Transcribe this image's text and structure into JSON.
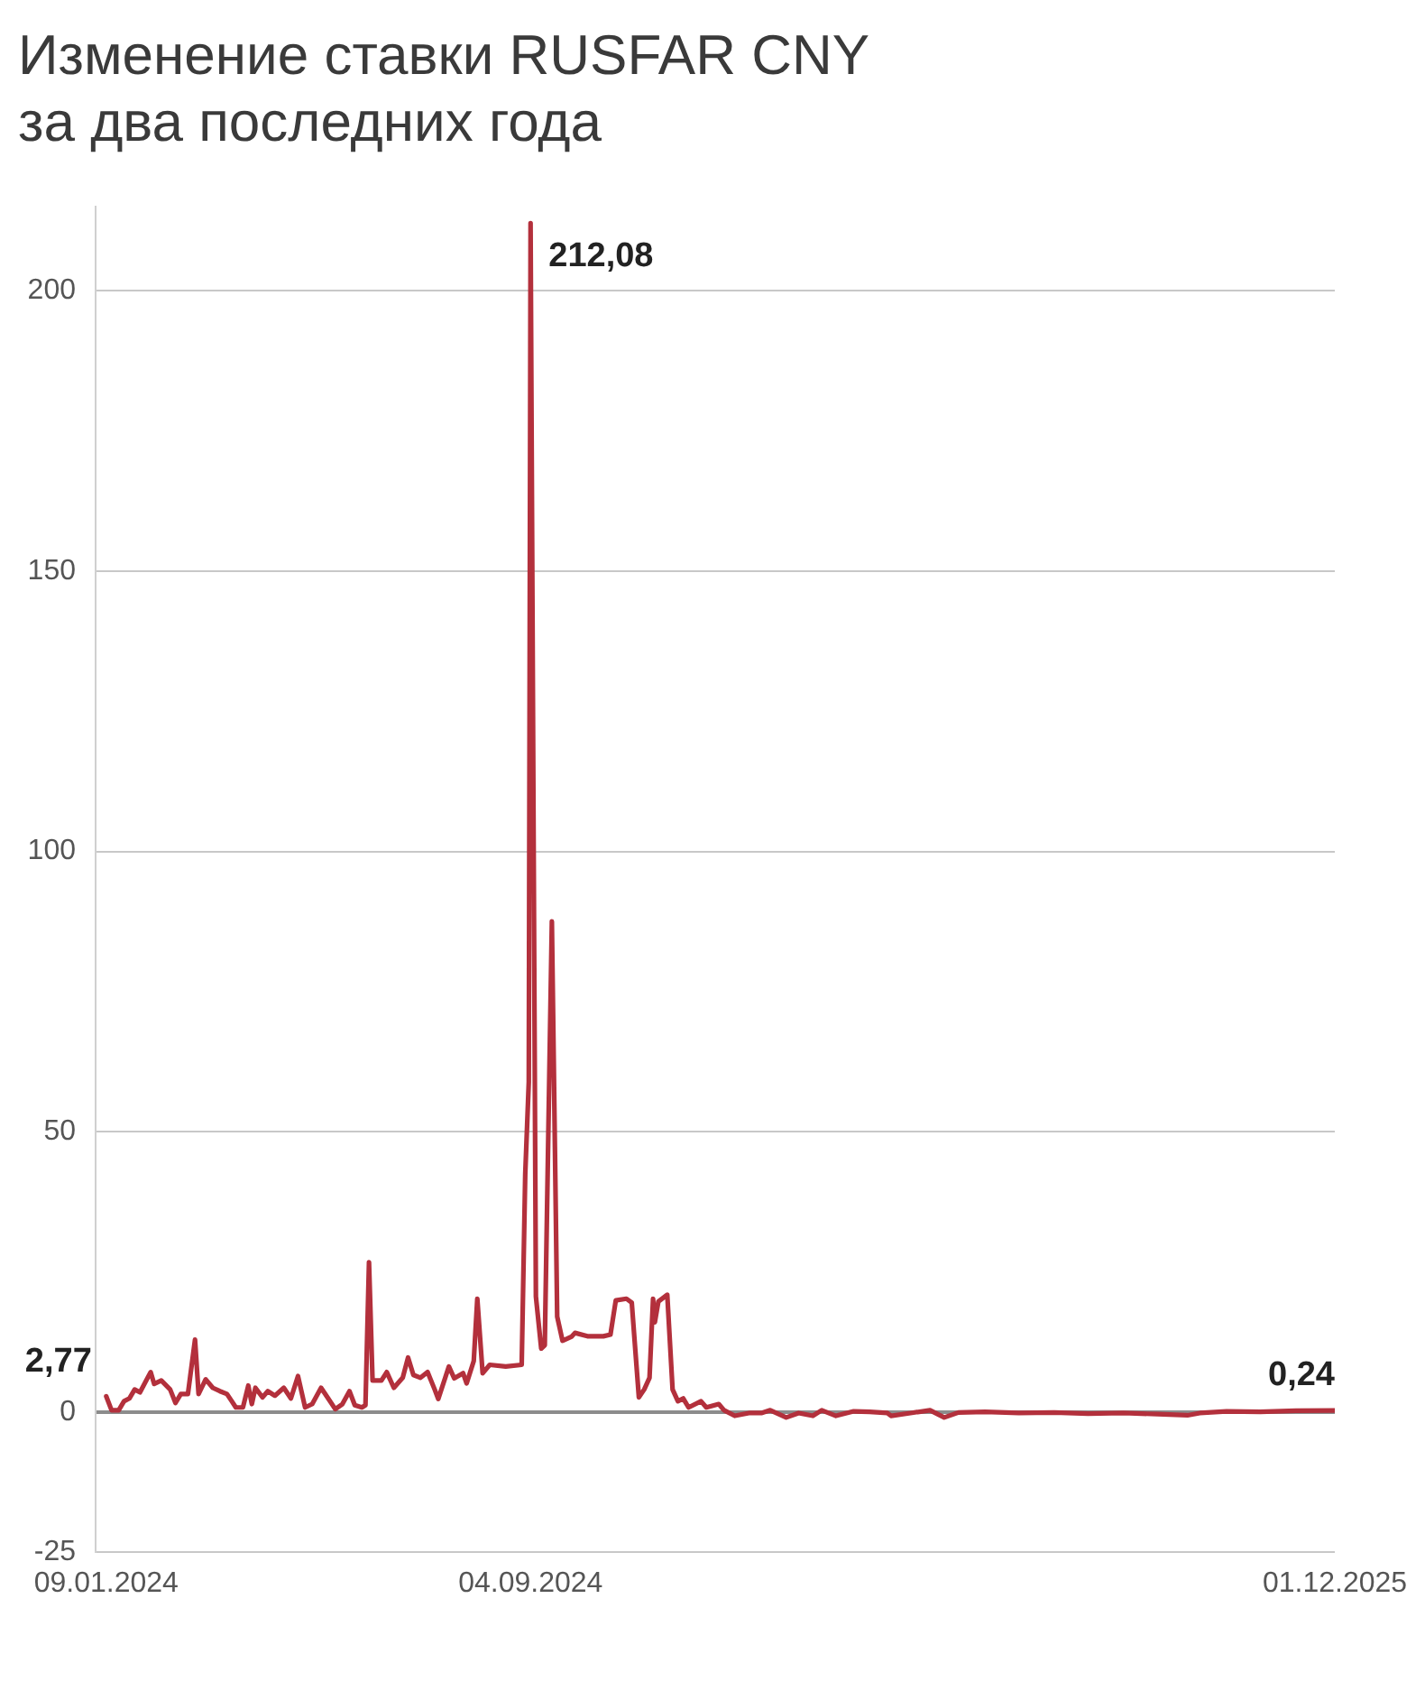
{
  "chart_data": {
    "type": "line",
    "title": "Изменение ставки RUSFAR CNY за два последних года",
    "x": [
      "2024-01-09",
      "2024-01-12",
      "2024-01-16",
      "2024-01-19",
      "2024-01-22",
      "2024-01-25",
      "2024-01-28",
      "2024-02-03",
      "2024-02-05",
      "2024-02-09",
      "2024-02-14",
      "2024-02-17",
      "2024-02-20",
      "2024-02-24",
      "2024-02-28",
      "2024-03-01",
      "2024-03-05",
      "2024-03-09",
      "2024-03-13",
      "2024-03-17",
      "2024-03-22",
      "2024-03-26",
      "2024-03-29",
      "2024-03-31",
      "2024-04-02",
      "2024-04-06",
      "2024-04-09",
      "2024-04-13",
      "2024-04-18",
      "2024-04-22",
      "2024-04-26",
      "2024-04-30",
      "2024-05-04",
      "2024-05-09",
      "2024-05-13",
      "2024-05-17",
      "2024-05-21",
      "2024-05-25",
      "2024-05-28",
      "2024-06-01",
      "2024-06-03",
      "2024-06-05",
      "2024-06-07",
      "2024-06-12",
      "2024-06-15",
      "2024-06-19",
      "2024-06-24",
      "2024-06-27",
      "2024-06-30",
      "2024-07-04",
      "2024-07-08",
      "2024-07-12",
      "2024-07-14",
      "2024-07-20",
      "2024-07-23",
      "2024-07-28",
      "2024-07-30",
      "2024-08-03",
      "2024-08-05",
      "2024-08-08",
      "2024-08-12",
      "2024-08-21",
      "2024-08-30",
      "2024-09-01",
      "2024-09-03",
      "2024-09-04",
      "2024-09-07",
      "2024-09-10",
      "2024-09-12",
      "2024-09-16",
      "2024-09-19",
      "2024-09-22",
      "2024-09-27",
      "2024-09-29",
      "2024-10-06",
      "2024-10-15",
      "2024-10-19",
      "2024-10-22",
      "2024-10-28",
      "2024-10-31",
      "2024-11-04",
      "2024-11-07",
      "2024-11-10",
      "2024-11-12",
      "2024-11-13",
      "2024-11-15",
      "2024-11-20",
      "2024-11-23",
      "2024-11-26",
      "2024-11-29",
      "2024-12-02",
      "2024-12-09",
      "2024-12-12",
      "2024-12-19",
      "2024-12-22",
      "2024-12-28",
      "2025-01-05",
      "2025-01-12",
      "2025-01-17",
      "2025-01-26",
      "2025-02-02",
      "2025-02-10",
      "2025-02-15",
      "2025-02-23",
      "2025-03-05",
      "2025-03-14",
      "2025-03-24",
      "2025-03-26",
      "2025-04-06",
      "2025-04-17",
      "2025-04-25",
      "2025-05-03",
      "2025-05-18",
      "2025-06-06",
      "2025-06-26",
      "2025-07-15",
      "2025-08-04",
      "2025-08-23",
      "2025-09-09",
      "2025-09-16",
      "2025-10-01",
      "2025-10-20",
      "2025-11-09",
      "2025-12-01"
    ],
    "values": [
      2.77,
      0.3,
      0.3,
      1.9,
      2.4,
      4.0,
      3.5,
      7.1,
      5.0,
      5.6,
      4.0,
      1.6,
      3.2,
      3.2,
      12.9,
      3.2,
      5.8,
      4.3,
      3.7,
      3.2,
      0.8,
      0.8,
      4.7,
      1.4,
      4.3,
      2.6,
      3.7,
      2.9,
      4.3,
      2.4,
      6.4,
      0.8,
      1.4,
      4.3,
      2.4,
      0.5,
      1.4,
      3.7,
      1.2,
      0.8,
      1.2,
      26.7,
      5.6,
      5.6,
      7.1,
      4.3,
      6.1,
      9.7,
      6.6,
      6.1,
      7.1,
      4.0,
      2.3,
      8.1,
      6.0,
      6.9,
      5.1,
      9.1,
      20.2,
      6.9,
      8.4,
      8.1,
      8.4,
      42.4,
      58.9,
      212.08,
      20.6,
      11.3,
      11.9,
      87.5,
      17.0,
      12.7,
      13.4,
      14.1,
      13.5,
      13.5,
      13.8,
      19.9,
      20.2,
      19.5,
      2.6,
      4.0,
      6.1,
      20.2,
      16.0,
      19.7,
      20.9,
      4.0,
      1.9,
      2.4,
      0.8,
      1.9,
      0.8,
      1.4,
      0.3,
      -0.7,
      -0.2,
      -0.2,
      0.3,
      -1.0,
      -0.2,
      -0.7,
      0.3,
      -0.7,
      0.1,
      0.0,
      -0.2,
      -0.7,
      -0.2,
      0.3,
      -1.0,
      -0.1,
      0.0,
      -0.2,
      -0.1,
      -0.3,
      -0.2,
      -0.4,
      -0.6,
      -0.2,
      0.1,
      0.0,
      0.2,
      0.24
    ],
    "value_labels": [
      "2,77",
      null,
      null,
      null,
      null,
      null,
      null,
      null,
      null,
      null,
      null,
      null,
      null,
      null,
      null,
      null,
      null,
      null,
      null,
      null,
      null,
      null,
      null,
      null,
      null,
      null,
      null,
      null,
      null,
      null,
      null,
      null,
      null,
      null,
      null,
      null,
      null,
      null,
      null,
      null,
      null,
      null,
      null,
      null,
      null,
      null,
      null,
      null,
      null,
      null,
      null,
      null,
      null,
      null,
      null,
      null,
      null,
      null,
      null,
      null,
      null,
      null,
      null,
      null,
      null,
      "212,08",
      null,
      null,
      null,
      null,
      null,
      null,
      null,
      null,
      null,
      null,
      null,
      null,
      null,
      null,
      null,
      null,
      null,
      null,
      null,
      null,
      null,
      null,
      null,
      null,
      null,
      null,
      null,
      null,
      null,
      null,
      null,
      null,
      null,
      null,
      null,
      null,
      null,
      null,
      null,
      null,
      null,
      null,
      null,
      null,
      null,
      null,
      null,
      null,
      null,
      null,
      null,
      null,
      null,
      null,
      null,
      null,
      null,
      "0,24"
    ],
    "color": "#b3303c",
    "xlim": [
      "2024-01-03",
      "2025-12-01"
    ],
    "xticks": [
      {
        "value": "2024-01-09",
        "label": "09.01.2024"
      },
      {
        "value": "2024-09-04",
        "label": "04.09.2024"
      },
      {
        "value": "2025-12-01",
        "label": "01.12.2025"
      }
    ],
    "ylim": [
      -25,
      215
    ],
    "yticks": [
      -25,
      0,
      50,
      100,
      150,
      200
    ],
    "grid": "y"
  }
}
